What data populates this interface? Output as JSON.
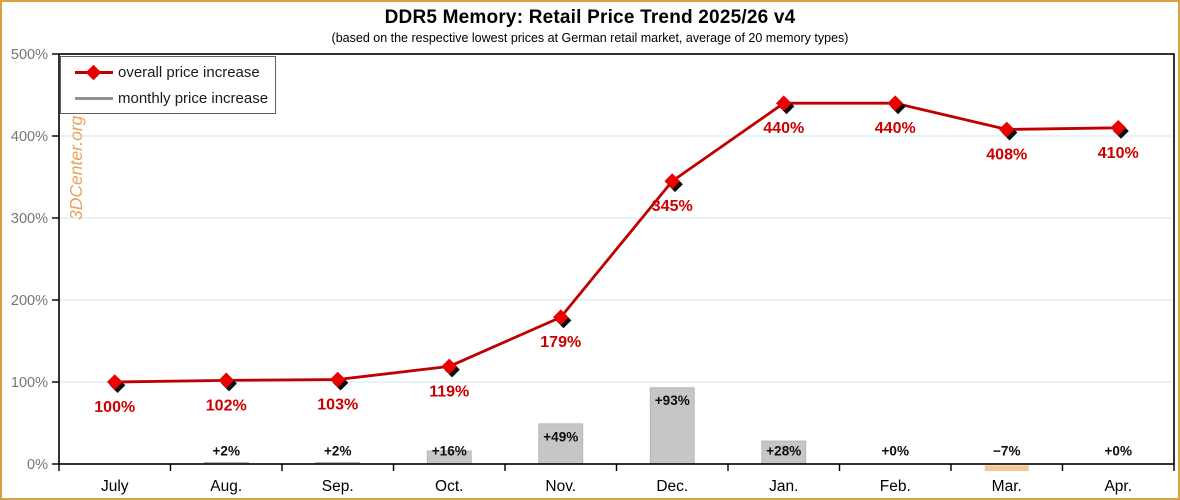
{
  "header": {
    "title": "DDR5 Memory: Retail Price Trend 2025/26 v4",
    "subtitle": "(based on the respective lowest prices at German retail market, average of 20 memory types)"
  },
  "watermark": "3DCenter.org",
  "legend": {
    "items": [
      {
        "label": "overall price increase",
        "swatch": "red-line-diamond-icon"
      },
      {
        "label": "monthly price increase",
        "swatch": "gray-line-icon"
      }
    ]
  },
  "colors": {
    "border": "#d9a23e",
    "line": "#c00000",
    "marker": "#ee0000",
    "marker_shadow": "#0d0d0d",
    "value_label": "#cc0000",
    "bar": "#c6c6c6",
    "bar_border": "#b0b0b0",
    "bar_negative": "#f5c795",
    "bar_label": "#0d0d0d",
    "grid": "#d7eef4",
    "axis": "#000000",
    "tick_label": "#757575",
    "month_label": "#000000",
    "watermark": "#eaa25c"
  },
  "chart_data": {
    "type": "line+bar",
    "title": "DDR5 Memory: Retail Price Trend 2025/26 v4",
    "subtitle": "(based on the respective lowest prices at German retail market, average of 20 memory types)",
    "categories": [
      "July",
      "Aug.",
      "Sep.",
      "Oct.",
      "Nov.",
      "Dec.",
      "Jan.",
      "Feb.",
      "Mar.",
      "Apr."
    ],
    "series": [
      {
        "name": "overall price increase",
        "type": "line",
        "values": [
          100,
          102,
          103,
          119,
          179,
          345,
          440,
          440,
          408,
          410
        ],
        "labels": [
          "100%",
          "102%",
          "103%",
          "119%",
          "179%",
          "345%",
          "440%",
          "440%",
          "408%",
          "410%"
        ]
      },
      {
        "name": "monthly price increase",
        "type": "bar",
        "values": [
          null,
          2,
          2,
          16,
          49,
          93,
          28,
          0,
          -7,
          0
        ],
        "labels": [
          "",
          "+2%",
          "+2%",
          "+16%",
          "+49%",
          "+93%",
          "+28%",
          "+0%",
          "−7%",
          "+0%"
        ]
      }
    ],
    "ylim": [
      0,
      500
    ],
    "yticks": [
      0,
      100,
      200,
      300,
      400,
      500
    ],
    "ytick_labels": [
      "0%",
      "100%",
      "200%",
      "300%",
      "400%",
      "500%"
    ],
    "grid": true,
    "legend_position": "top-left"
  }
}
